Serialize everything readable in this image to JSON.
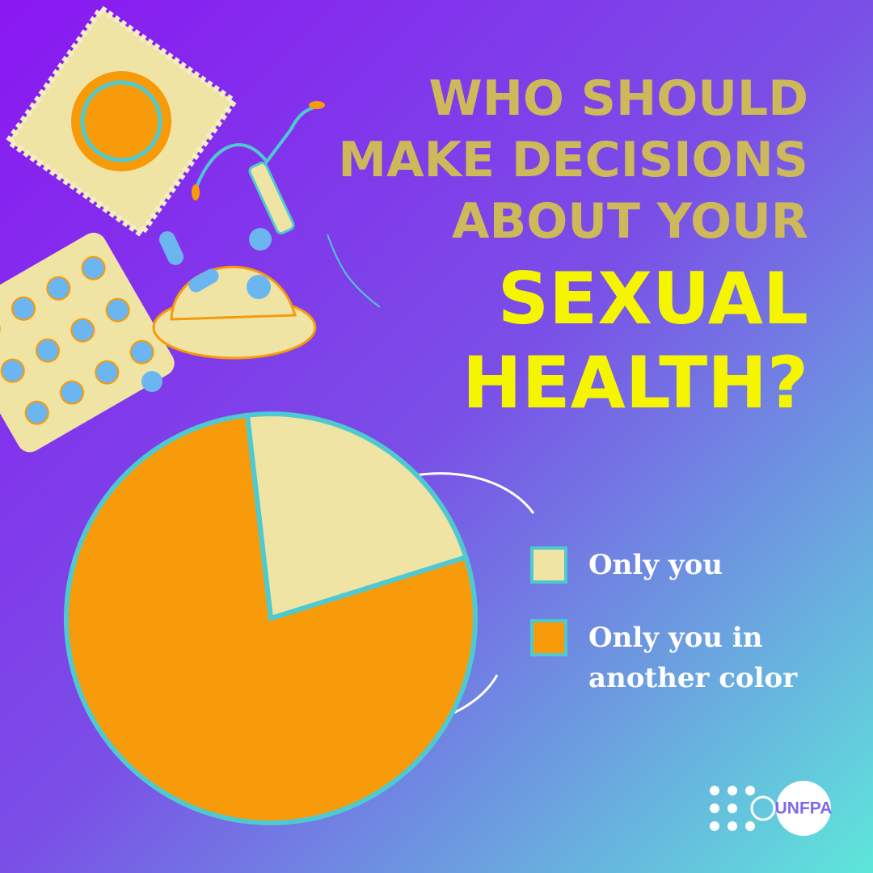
{
  "chart_data": {
    "type": "pie",
    "title": [
      "WHO SHOULD",
      "MAKE DECISIONS",
      "ABOUT YOUR"
    ],
    "title_highlight": [
      "SEXUAL",
      "HEALTH?"
    ],
    "categories": [
      "Only you",
      "Only you in another color"
    ],
    "values": [
      22,
      78
    ],
    "colors": [
      "#efe4a4",
      "#f79a0a"
    ],
    "logo": "UNFPA"
  }
}
